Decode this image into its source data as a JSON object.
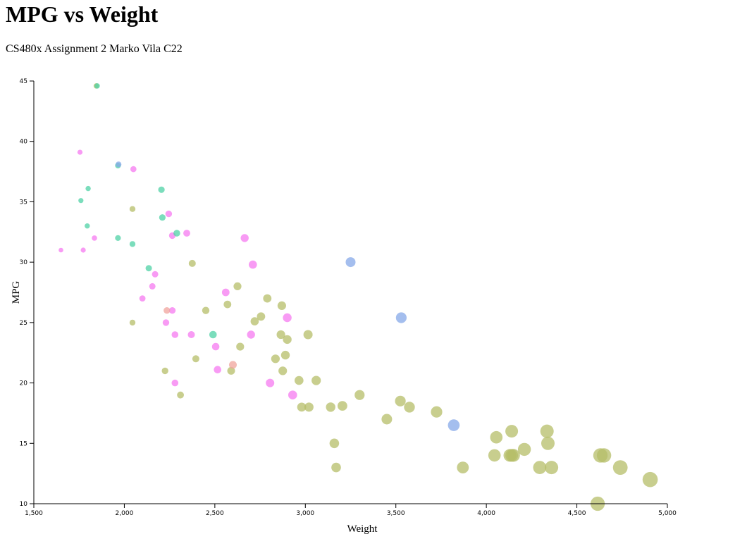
{
  "page": {
    "title": "MPG vs Weight",
    "subtitle": "CS480x Assignment 2 Marko Vila C22"
  },
  "colors": {
    "green_series": "#b5bd68",
    "pink_series": "#f57af0",
    "teal_series": "#4fd1a6",
    "blue_series": "#86a8e8",
    "salmon_series": "#f0a49c"
  },
  "chart_data": {
    "type": "scatter",
    "title": "MPG vs Weight",
    "xlabel": "Weight",
    "ylabel": "MPG",
    "xlim": [
      1500,
      5000
    ],
    "ylim": [
      10,
      45
    ],
    "xticks": [
      "1,500",
      "2,000",
      "2,500",
      "3,000",
      "3,500",
      "4,000",
      "4,500",
      "5,000"
    ],
    "yticks": [
      "10",
      "15",
      "20",
      "25",
      "30",
      "35",
      "40",
      "45"
    ],
    "grid": false,
    "legend": "none",
    "series": [
      {
        "color": "#b5bd68",
        "points": [
          [
            1845,
            44.6
          ],
          [
            2045,
            34.4
          ],
          [
            2375,
            29.9
          ],
          [
            2625,
            28
          ],
          [
            2790,
            27
          ],
          [
            2570,
            26.5
          ],
          [
            2450,
            26
          ],
          [
            2870,
            26.4
          ],
          [
            2755,
            25.5
          ],
          [
            2720,
            25.1
          ],
          [
            2045,
            25
          ],
          [
            2865,
            24
          ],
          [
            3015,
            24
          ],
          [
            2900,
            23.6
          ],
          [
            2640,
            23
          ],
          [
            2890,
            22.3
          ],
          [
            2835,
            22
          ],
          [
            2395,
            22
          ],
          [
            2225,
            21
          ],
          [
            2590,
            21
          ],
          [
            2875,
            21
          ],
          [
            3060,
            20.2
          ],
          [
            2965,
            20.2
          ],
          [
            2310,
            19
          ],
          [
            3300,
            19
          ],
          [
            3525,
            18.5
          ],
          [
            3575,
            18
          ],
          [
            3205,
            18.1
          ],
          [
            3140,
            18
          ],
          [
            2980,
            18
          ],
          [
            3020,
            18
          ],
          [
            3725,
            17.6
          ],
          [
            3450,
            17
          ],
          [
            4140,
            16
          ],
          [
            4335,
            16
          ],
          [
            4055,
            15.5
          ],
          [
            3160,
            15
          ],
          [
            4340,
            15
          ],
          [
            4210,
            14.5
          ],
          [
            4140,
            14
          ],
          [
            4150,
            14
          ],
          [
            4045,
            14
          ],
          [
            4130,
            14
          ],
          [
            4650,
            14
          ],
          [
            4630,
            14
          ],
          [
            3170,
            13
          ],
          [
            3870,
            13
          ],
          [
            4295,
            13
          ],
          [
            4360,
            13
          ],
          [
            4740,
            13
          ],
          [
            4905,
            12
          ],
          [
            4615,
            10
          ]
        ]
      },
      {
        "color": "#f57af0",
        "points": [
          [
            1755,
            39.1
          ],
          [
            2050,
            37.7
          ],
          [
            2245,
            34
          ],
          [
            2345,
            32.4
          ],
          [
            2265,
            32.2
          ],
          [
            1835,
            32
          ],
          [
            2665,
            32
          ],
          [
            1650,
            31
          ],
          [
            1773,
            31
          ],
          [
            2710,
            29.8
          ],
          [
            2170,
            29
          ],
          [
            2155,
            28
          ],
          [
            2560,
            27.5
          ],
          [
            2100,
            27
          ],
          [
            2265,
            26
          ],
          [
            2900,
            25.4
          ],
          [
            2230,
            25
          ],
          [
            2280,
            24
          ],
          [
            2370,
            24
          ],
          [
            2700,
            24
          ],
          [
            2505,
            23
          ],
          [
            2515,
            21.1
          ],
          [
            2805,
            20
          ],
          [
            2280,
            20
          ],
          [
            2930,
            19
          ]
        ]
      },
      {
        "color": "#4fd1a6",
        "points": [
          [
            1850,
            44.6
          ],
          [
            1965,
            38
          ],
          [
            2205,
            36
          ],
          [
            1800,
            36.1
          ],
          [
            1760,
            35.1
          ],
          [
            2210,
            33.7
          ],
          [
            1795,
            33
          ],
          [
            2290,
            32.4
          ],
          [
            1965,
            32
          ],
          [
            2045,
            31.5
          ],
          [
            2135,
            29.5
          ],
          [
            2490,
            24
          ]
        ]
      },
      {
        "color": "#86a8e8",
        "points": [
          [
            1968,
            38.1
          ],
          [
            3250,
            30
          ],
          [
            3530,
            25.4
          ],
          [
            3820,
            16.5
          ]
        ]
      },
      {
        "color": "#f0a49c",
        "points": [
          [
            2235,
            26
          ],
          [
            2600,
            21.5
          ]
        ]
      }
    ]
  }
}
